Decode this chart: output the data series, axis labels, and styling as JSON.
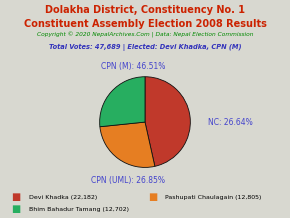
{
  "title_line1": "Dolakha District, Constituency No. 1",
  "title_line2": "Constituent Assembly Election 2008 Results",
  "copyright": "Copyright © 2020 NepalArchives.Com | Data: Nepal Election Commission",
  "total_votes_line": "Total Votes: 47,689 | Elected: Devi Khadka, CPN (M)",
  "slices": [
    {
      "label": "CPN (M)",
      "pct": 46.51,
      "color": "#c0392b",
      "votes": 22182,
      "candidate": "Devi Khadka"
    },
    {
      "label": "CPN (UML)",
      "pct": 26.85,
      "color": "#e67e22",
      "votes": 12805,
      "candidate": "Pashupati Chaulagain"
    },
    {
      "label": "NC",
      "pct": 26.64,
      "color": "#27ae60",
      "votes": 12702,
      "candidate": "Bhim Bahadur Tamang"
    }
  ],
  "pie_labels": [
    "CPN (M): 46.51%",
    "CPN (UML): 26.85%",
    "NC: 26.64%"
  ],
  "label_color": "#4444cc",
  "title_color": "#cc2200",
  "copyright_color": "#008800",
  "total_votes_color": "#3333bb",
  "background_color": "#d8d8d0",
  "legend_entries": [
    {
      "color": "#c0392b",
      "text": "Devi Khadka (22,182)"
    },
    {
      "color": "#e67e22",
      "text": "Pashupati Chaulagain (12,805)"
    },
    {
      "color": "#27ae60",
      "text": "Bhim Bahadur Tamang (12,702)"
    }
  ]
}
